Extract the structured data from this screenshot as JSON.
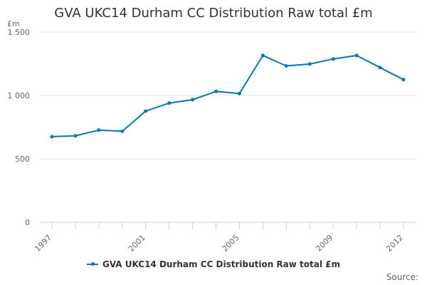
{
  "chart_data": {
    "type": "line",
    "title": "GVA UKC14 Durham CC Distribution Raw total £m",
    "ylabel": "£m",
    "xlabel": "",
    "x": [
      1997,
      1998,
      1999,
      2000,
      2001,
      2002,
      2003,
      2004,
      2005,
      2006,
      2007,
      2008,
      2009,
      2010,
      2011,
      2012
    ],
    "x_tick_labels": [
      "1997",
      "2001",
      "2005",
      "2009",
      "2012"
    ],
    "x_tick_values": [
      1997,
      2001,
      2005,
      2009,
      2012
    ],
    "y_ticks": [
      0,
      500,
      1000,
      1500
    ],
    "y_tick_labels": [
      "0",
      "500",
      "1 000",
      "1 500"
    ],
    "ylim": [
      0,
      1500
    ],
    "grid": true,
    "legend_position": "bottom",
    "series": [
      {
        "name": "GVA UKC14 Durham CC Distribution Raw total £m",
        "color": "#0077bc",
        "values": [
          675,
          682,
          727,
          718,
          877,
          940,
          967,
          1032,
          1015,
          1315,
          1233,
          1248,
          1288,
          1315,
          1220,
          1125
        ]
      }
    ]
  },
  "source_label": "Source:"
}
